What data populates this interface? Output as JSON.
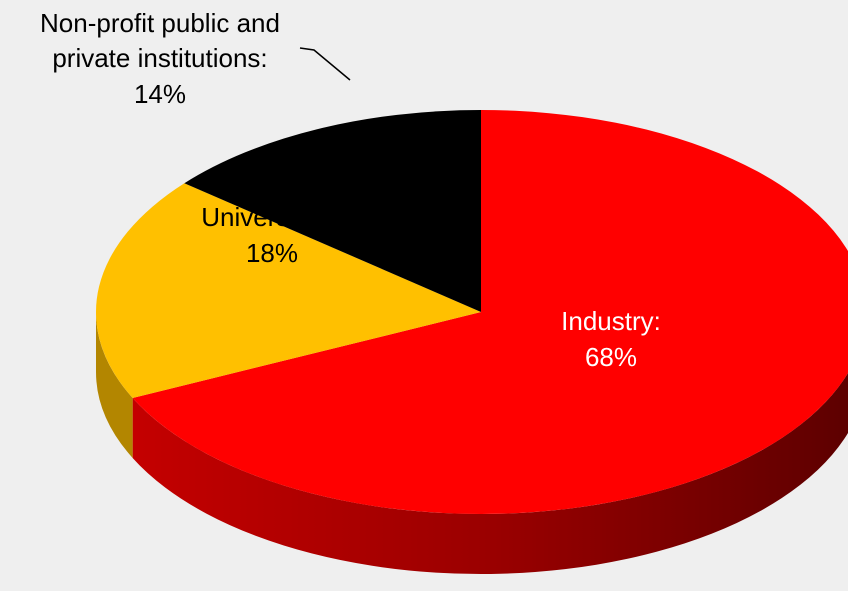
{
  "chart_data": {
    "type": "pie",
    "title": "",
    "start_angle_deg": -90,
    "direction": "clockwise",
    "slices": [
      {
        "name": "Industry",
        "value": 68,
        "label": "Industry:",
        "value_label": "68%",
        "color": "#ff0000",
        "side_color": "#8b0000",
        "label_color": "#ffffff"
      },
      {
        "name": "Universities",
        "value": 18,
        "label": "Universities:",
        "value_label": "18%",
        "color": "#ffc000",
        "side_color": "#b38600",
        "label_color": "#000000"
      },
      {
        "name": "Non-profit public and private institutions",
        "value": 14,
        "label_lines": [
          "Non-profit public and",
          "private institutions:"
        ],
        "value_label": "14%",
        "color": "#000000",
        "side_color": "#000000",
        "label_color": "#000000"
      }
    ],
    "view": "3d-tilted",
    "legend": "none",
    "background": "#efefef"
  }
}
